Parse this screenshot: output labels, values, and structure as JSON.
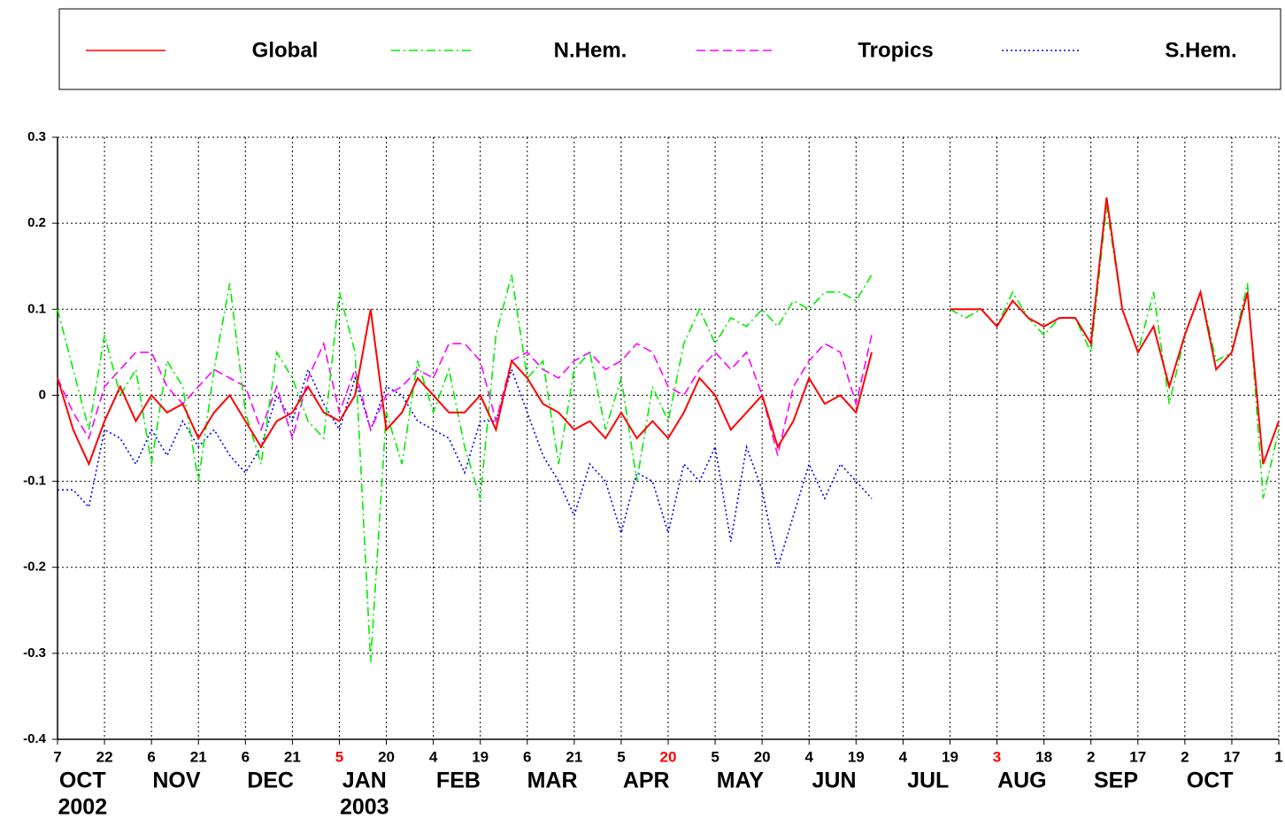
{
  "chart_data": {
    "type": "line",
    "x": [
      "2002-10-07",
      "2002-10-12",
      "2002-10-17",
      "2002-10-22",
      "2002-10-27",
      "2002-11-01",
      "2002-11-06",
      "2002-11-11",
      "2002-11-16",
      "2002-11-21",
      "2002-11-26",
      "2002-12-01",
      "2002-12-06",
      "2002-12-11",
      "2002-12-16",
      "2002-12-21",
      "2002-12-26",
      "2002-12-31",
      "2003-01-05",
      "2003-01-10",
      "2003-01-15",
      "2003-01-20",
      "2003-01-25",
      "2003-01-30",
      "2003-02-04",
      "2003-02-09",
      "2003-02-14",
      "2003-02-19",
      "2003-02-24",
      "2003-03-01",
      "2003-03-06",
      "2003-03-11",
      "2003-03-16",
      "2003-03-21",
      "2003-03-26",
      "2003-03-31",
      "2003-04-05",
      "2003-04-10",
      "2003-04-15",
      "2003-04-20",
      "2003-04-25",
      "2003-04-30",
      "2003-05-05",
      "2003-05-10",
      "2003-05-15",
      "2003-05-20",
      "2003-05-25",
      "2003-05-30",
      "2003-06-04",
      "2003-06-09",
      "2003-06-14",
      "2003-06-19",
      "2003-06-24",
      "2003-06-29",
      "2003-07-04",
      "2003-07-09",
      "2003-07-14",
      "2003-07-19",
      "2003-07-24",
      "2003-07-29",
      "2003-08-03",
      "2003-08-08",
      "2003-08-13",
      "2003-08-18",
      "2003-08-23",
      "2003-08-28",
      "2003-09-02",
      "2003-09-07",
      "2003-09-12",
      "2003-09-17",
      "2003-09-22",
      "2003-09-27",
      "2003-10-02",
      "2003-10-07",
      "2003-10-12",
      "2003-10-17",
      "2003-10-22",
      "2003-10-27",
      "2003-11-01"
    ],
    "series": [
      {
        "name": "Global",
        "color": "#ff0000",
        "line_style": "solid",
        "values": [
          0.02,
          -0.04,
          -0.08,
          -0.03,
          0.01,
          -0.03,
          0.0,
          -0.02,
          -0.01,
          -0.05,
          -0.02,
          0.0,
          -0.03,
          -0.06,
          -0.03,
          -0.02,
          0.01,
          -0.02,
          -0.03,
          0.0,
          0.1,
          -0.04,
          -0.02,
          0.02,
          0.0,
          -0.02,
          -0.02,
          0.0,
          -0.04,
          0.04,
          0.02,
          -0.01,
          -0.02,
          -0.04,
          -0.03,
          -0.05,
          -0.02,
          -0.05,
          -0.03,
          -0.05,
          -0.02,
          0.02,
          0.0,
          -0.04,
          -0.02,
          0.0,
          -0.06,
          -0.03,
          0.02,
          -0.01,
          0.0,
          -0.02,
          0.05,
          null,
          null,
          null,
          null,
          0.1,
          0.1,
          0.1,
          0.08,
          0.11,
          0.09,
          0.08,
          0.09,
          0.09,
          0.06,
          0.23,
          0.1,
          0.05,
          0.08,
          0.01,
          0.07,
          0.12,
          0.03,
          0.05,
          0.12,
          -0.08,
          -0.03
        ]
      },
      {
        "name": "N.Hem.",
        "color": "#00ee00",
        "line_style": "dashdot",
        "values": [
          0.1,
          0.03,
          -0.04,
          0.07,
          0.0,
          0.03,
          -0.08,
          0.04,
          0.01,
          -0.1,
          0.03,
          0.13,
          -0.02,
          -0.08,
          0.05,
          0.02,
          -0.03,
          -0.05,
          0.12,
          0.05,
          -0.31,
          -0.02,
          -0.08,
          0.04,
          -0.02,
          0.03,
          -0.06,
          -0.12,
          0.07,
          0.14,
          0.02,
          0.04,
          -0.08,
          0.03,
          0.05,
          -0.04,
          0.02,
          -0.1,
          0.01,
          -0.03,
          0.06,
          0.1,
          0.06,
          0.09,
          0.08,
          0.1,
          0.08,
          0.11,
          0.1,
          0.12,
          0.12,
          0.11,
          0.14,
          null,
          null,
          null,
          null,
          0.1,
          0.09,
          0.1,
          0.08,
          0.12,
          0.09,
          0.07,
          0.09,
          0.09,
          0.05,
          0.22,
          0.1,
          0.05,
          0.12,
          -0.01,
          0.07,
          0.12,
          0.04,
          0.05,
          0.13,
          -0.12,
          -0.04
        ]
      },
      {
        "name": "Tropics",
        "color": "#ff00ff",
        "line_style": "dashed",
        "values": [
          0.02,
          -0.02,
          -0.05,
          0.01,
          0.03,
          0.05,
          0.05,
          0.01,
          -0.01,
          0.01,
          0.03,
          0.02,
          0.01,
          -0.04,
          0.01,
          -0.05,
          0.02,
          0.06,
          -0.02,
          0.03,
          -0.04,
          0.0,
          0.01,
          0.03,
          0.02,
          0.06,
          0.06,
          0.04,
          -0.03,
          0.04,
          0.05,
          0.03,
          0.02,
          0.04,
          0.05,
          0.03,
          0.04,
          0.06,
          0.05,
          0.01,
          0.0,
          0.03,
          0.05,
          0.03,
          0.05,
          0.0,
          -0.07,
          0.01,
          0.04,
          0.06,
          0.05,
          -0.01,
          0.07,
          null,
          null,
          null,
          null,
          null,
          null,
          null,
          null,
          null,
          null,
          null,
          null,
          null,
          null,
          null,
          null,
          null,
          null,
          null,
          null,
          null,
          null,
          null,
          null,
          null,
          null
        ]
      },
      {
        "name": "S.Hem.",
        "color": "#0000ff",
        "line_style": "dotted",
        "values": [
          -0.11,
          -0.11,
          -0.13,
          -0.04,
          -0.05,
          -0.08,
          -0.04,
          -0.07,
          -0.03,
          -0.06,
          -0.04,
          -0.07,
          -0.09,
          -0.06,
          0.0,
          -0.03,
          0.03,
          -0.01,
          -0.04,
          0.02,
          -0.04,
          0.01,
          0.0,
          -0.03,
          -0.04,
          -0.05,
          -0.09,
          -0.03,
          -0.03,
          0.03,
          -0.02,
          -0.07,
          -0.1,
          -0.14,
          -0.08,
          -0.1,
          -0.16,
          -0.09,
          -0.1,
          -0.16,
          -0.08,
          -0.1,
          -0.06,
          -0.17,
          -0.06,
          -0.11,
          -0.2,
          -0.14,
          -0.08,
          -0.12,
          -0.08,
          -0.1,
          -0.12,
          null,
          null,
          null,
          null,
          null,
          null,
          null,
          null,
          null,
          null,
          null,
          null,
          null,
          null,
          null,
          null,
          null,
          null,
          null,
          null,
          null,
          null,
          null,
          null,
          null,
          null
        ]
      }
    ],
    "xlim": [
      "2002-10-07",
      "2003-11-01"
    ],
    "xticks": [
      {
        "value": "2002-10-07",
        "label": "7"
      },
      {
        "value": "2002-10-22",
        "label": "22"
      },
      {
        "value": "2002-11-06",
        "label": "6"
      },
      {
        "value": "2002-11-21",
        "label": "21"
      },
      {
        "value": "2002-12-06",
        "label": "6"
      },
      {
        "value": "2002-12-21",
        "label": "21"
      },
      {
        "value": "2003-01-05",
        "label": "5",
        "color": "#ff0000"
      },
      {
        "value": "2003-01-20",
        "label": "20"
      },
      {
        "value": "2003-02-04",
        "label": "4"
      },
      {
        "value": "2003-02-19",
        "label": "19"
      },
      {
        "value": "2003-03-06",
        "label": "6"
      },
      {
        "value": "2003-03-21",
        "label": "21"
      },
      {
        "value": "2003-04-05",
        "label": "5"
      },
      {
        "value": "2003-04-20",
        "label": "20",
        "color": "#ff0000"
      },
      {
        "value": "2003-05-05",
        "label": "5"
      },
      {
        "value": "2003-05-20",
        "label": "20"
      },
      {
        "value": "2003-06-04",
        "label": "4"
      },
      {
        "value": "2003-06-19",
        "label": "19"
      },
      {
        "value": "2003-07-04",
        "label": "4"
      },
      {
        "value": "2003-07-19",
        "label": "19"
      },
      {
        "value": "2003-08-03",
        "label": "3",
        "color": "#ff0000"
      },
      {
        "value": "2003-08-18",
        "label": "18"
      },
      {
        "value": "2003-09-02",
        "label": "2"
      },
      {
        "value": "2003-09-17",
        "label": "17"
      },
      {
        "value": "2003-10-02",
        "label": "2"
      },
      {
        "value": "2003-10-17",
        "label": "17"
      },
      {
        "value": "2003-11-01",
        "label": "1"
      }
    ],
    "month_labels": [
      {
        "value": "2002-10-15",
        "label": "OCT"
      },
      {
        "value": "2002-11-14",
        "label": "NOV"
      },
      {
        "value": "2002-12-14",
        "label": "DEC"
      },
      {
        "value": "2003-01-13",
        "label": "JAN"
      },
      {
        "value": "2003-02-12",
        "label": "FEB"
      },
      {
        "value": "2003-03-14",
        "label": "MAR"
      },
      {
        "value": "2003-04-13",
        "label": "APR"
      },
      {
        "value": "2003-05-13",
        "label": "MAY"
      },
      {
        "value": "2003-06-12",
        "label": "JUN"
      },
      {
        "value": "2003-07-12",
        "label": "JUL"
      },
      {
        "value": "2003-08-11",
        "label": "AUG"
      },
      {
        "value": "2003-09-10",
        "label": "SEP"
      },
      {
        "value": "2003-10-10",
        "label": "OCT"
      }
    ],
    "year_labels": [
      {
        "value": "2002-10-15",
        "label": "2002"
      },
      {
        "value": "2003-01-13",
        "label": "2003"
      }
    ],
    "ylim": [
      -0.4,
      0.3
    ],
    "yticks": [
      -0.4,
      -0.3,
      -0.2,
      -0.1,
      0,
      0.1,
      0.2,
      0.3
    ],
    "grid": true,
    "legend": "top"
  }
}
